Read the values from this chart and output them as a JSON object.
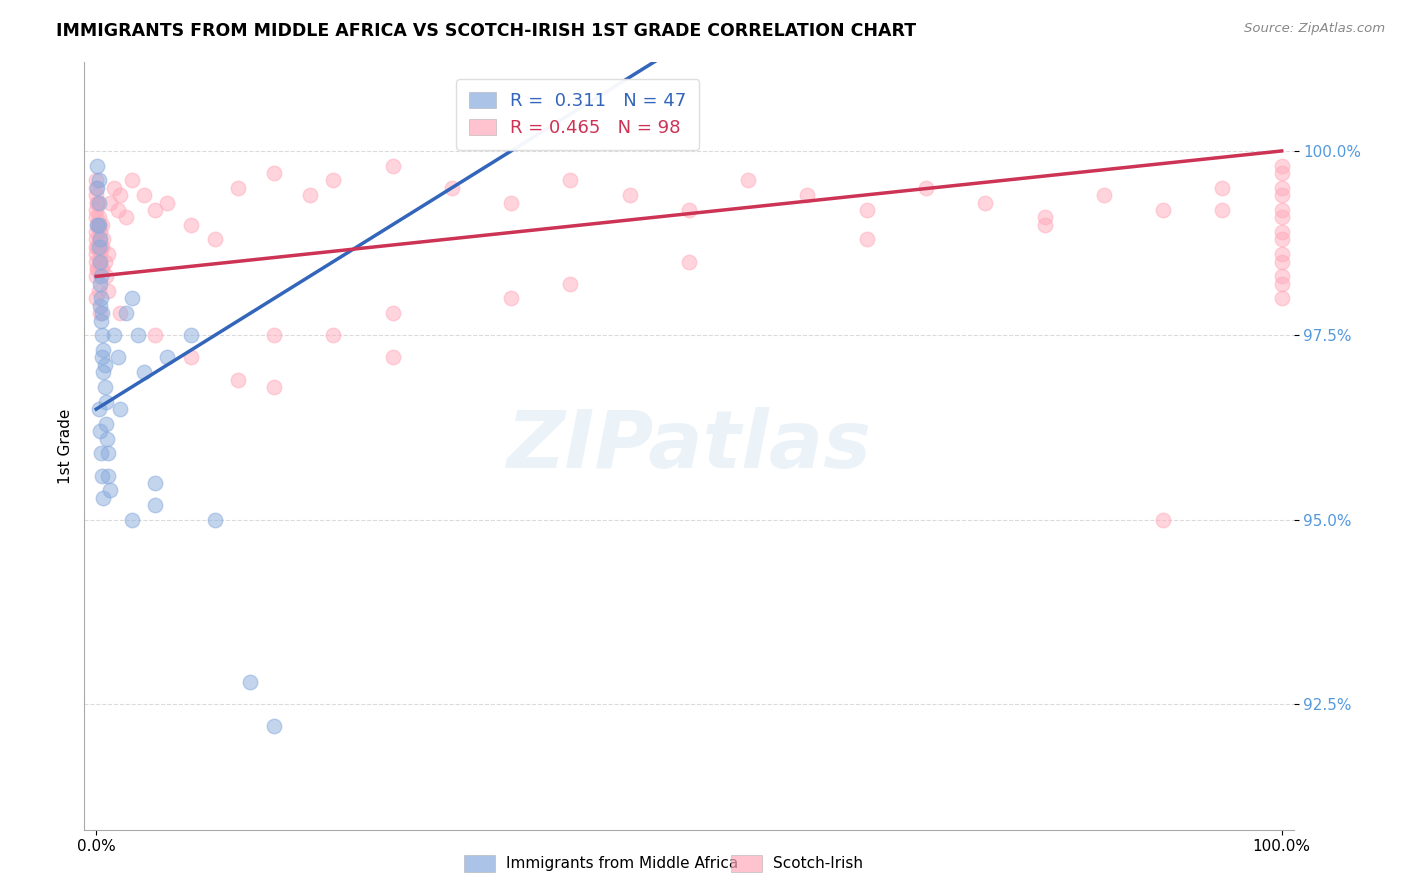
{
  "title": "IMMIGRANTS FROM MIDDLE AFRICA VS SCOTCH-IRISH 1ST GRADE CORRELATION CHART",
  "source": "Source: ZipAtlas.com",
  "watermark": "ZIPatlas",
  "ylabel": "1st Grade",
  "blue_R": 0.311,
  "blue_N": 47,
  "pink_R": 0.465,
  "pink_N": 98,
  "blue_color": "#88aadd",
  "pink_color": "#ffaabb",
  "blue_line_color": "#3366bb",
  "pink_line_color": "#cc3355",
  "tick_color": "#5599dd",
  "yticks": [
    92.5,
    95.0,
    97.5,
    100.0
  ],
  "ylim": [
    90.8,
    101.2
  ],
  "xlim": [
    -0.01,
    1.01
  ],
  "legend_blue_label": "Immigrants from Middle Africa",
  "legend_pink_label": "Scotch-Irish",
  "grid_color": "#cccccc",
  "background_color": "#ffffff",
  "blue_x": [
    0.001,
    0.001,
    0.001,
    0.002,
    0.002,
    0.002,
    0.002,
    0.003,
    0.003,
    0.003,
    0.003,
    0.004,
    0.004,
    0.004,
    0.005,
    0.005,
    0.005,
    0.006,
    0.006,
    0.007,
    0.007,
    0.008,
    0.008,
    0.009,
    0.01,
    0.01,
    0.012,
    0.015,
    0.018,
    0.02,
    0.025,
    0.03,
    0.035,
    0.04,
    0.05,
    0.06,
    0.08,
    0.1,
    0.13,
    0.15,
    0.002,
    0.003,
    0.004,
    0.005,
    0.006,
    0.03,
    0.05
  ],
  "blue_y": [
    99.8,
    99.5,
    99.0,
    99.6,
    99.3,
    99.0,
    98.7,
    98.8,
    98.5,
    98.2,
    97.9,
    98.3,
    98.0,
    97.7,
    97.8,
    97.5,
    97.2,
    97.3,
    97.0,
    97.1,
    96.8,
    96.6,
    96.3,
    96.1,
    95.9,
    95.6,
    95.4,
    97.5,
    97.2,
    96.5,
    97.8,
    98.0,
    97.5,
    97.0,
    95.5,
    97.2,
    97.5,
    95.0,
    92.8,
    92.2,
    96.5,
    96.2,
    95.9,
    95.6,
    95.3,
    95.0,
    95.2
  ],
  "pink_x": [
    0.0,
    0.0,
    0.0,
    0.0,
    0.0,
    0.0,
    0.001,
    0.001,
    0.001,
    0.001,
    0.002,
    0.002,
    0.002,
    0.003,
    0.003,
    0.004,
    0.005,
    0.005,
    0.006,
    0.007,
    0.008,
    0.01,
    0.012,
    0.015,
    0.018,
    0.02,
    0.025,
    0.03,
    0.04,
    0.05,
    0.06,
    0.08,
    0.1,
    0.12,
    0.15,
    0.18,
    0.2,
    0.25,
    0.3,
    0.35,
    0.4,
    0.45,
    0.5,
    0.55,
    0.6,
    0.65,
    0.7,
    0.75,
    0.8,
    0.85,
    0.9,
    0.95,
    1.0,
    1.0,
    1.0,
    1.0,
    1.0,
    1.0,
    1.0,
    1.0,
    1.0,
    1.0,
    1.0,
    1.0,
    1.0,
    0.15,
    0.25,
    0.9,
    0.0,
    0.001,
    0.002,
    0.003,
    0.004,
    0.0,
    0.001,
    0.002,
    0.003,
    0.0,
    0.0,
    0.0,
    0.0,
    0.002,
    0.003,
    0.005,
    0.01,
    0.02,
    0.05,
    0.08,
    0.12,
    0.2,
    0.35,
    0.5,
    0.65,
    0.8,
    0.95,
    0.15,
    0.25,
    0.4
  ],
  "pink_y": [
    99.5,
    99.2,
    98.9,
    98.6,
    98.3,
    98.0,
    99.3,
    99.0,
    98.7,
    98.4,
    99.1,
    98.8,
    98.5,
    98.9,
    98.6,
    98.7,
    99.0,
    98.7,
    98.8,
    98.5,
    98.3,
    98.6,
    99.3,
    99.5,
    99.2,
    99.4,
    99.1,
    99.6,
    99.4,
    99.2,
    99.3,
    99.0,
    98.8,
    99.5,
    99.7,
    99.4,
    99.6,
    99.8,
    99.5,
    99.3,
    99.6,
    99.4,
    99.2,
    99.6,
    99.4,
    99.2,
    99.5,
    99.3,
    99.1,
    99.4,
    99.2,
    99.5,
    99.8,
    99.5,
    99.2,
    98.9,
    98.6,
    98.3,
    98.0,
    99.7,
    99.4,
    99.1,
    98.8,
    98.5,
    98.2,
    96.8,
    97.2,
    95.0,
    99.6,
    99.3,
    99.0,
    98.7,
    98.4,
    98.7,
    98.4,
    98.1,
    97.8,
    99.4,
    99.1,
    98.8,
    98.5,
    99.0,
    98.7,
    98.4,
    98.1,
    97.8,
    97.5,
    97.2,
    96.9,
    97.5,
    98.0,
    98.5,
    98.8,
    99.0,
    99.2,
    97.5,
    97.8,
    98.2
  ]
}
